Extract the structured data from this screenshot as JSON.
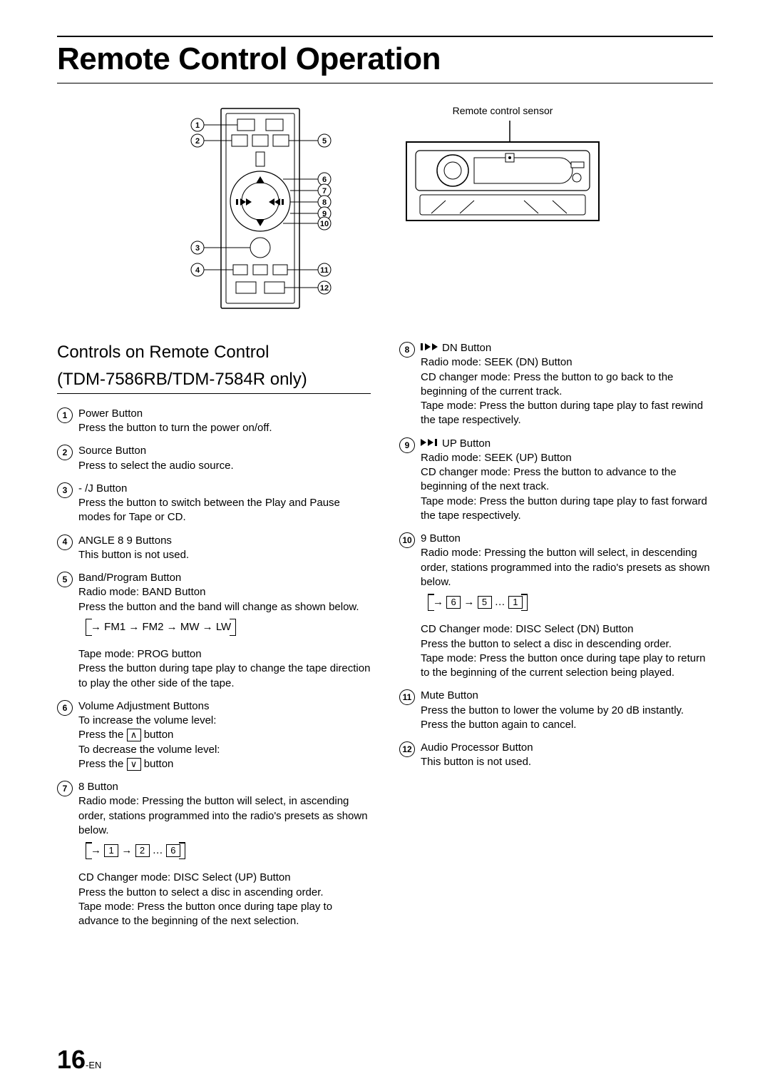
{
  "page": {
    "title": "Remote Control Operation",
    "number": "16",
    "number_suffix": "-EN"
  },
  "figures": {
    "sensor_label": "Remote control sensor",
    "remote_callouts": [
      "1",
      "2",
      "3",
      "4",
      "5",
      "6",
      "7",
      "8",
      "9",
      "10",
      "11",
      "12"
    ]
  },
  "section": {
    "heading_line1": "Controls on Remote Control",
    "heading_line2": "(TDM-7586RB/TDM-7584R only)"
  },
  "items_left": [
    {
      "num": "1",
      "head": "Power Button",
      "desc": "Press the button to turn the power on/off."
    },
    {
      "num": "2",
      "head": "Source  Button",
      "desc": "Press to select the audio source."
    },
    {
      "num": "3",
      "head": "- /J Button",
      "desc": "Press the button to switch between the Play and Pause modes for Tape or CD."
    },
    {
      "num": "4",
      "head": "ANGLE 8 9 Buttons",
      "desc": "This button is not used."
    },
    {
      "num": "5",
      "head": "Band/Program Button",
      "desc_pre": "Radio mode: BAND Button\nPress the button and the band will change as shown below.",
      "cycle": "→ FM1 → FM2 → MW → LW",
      "desc_post": "Tape mode: PROG button\nPress the button during tape play to change the tape direction to play the other side of the tape."
    },
    {
      "num": "6",
      "head": "Volume Adjustment Buttons",
      "desc_lines": [
        "To increase the volume level:",
        {
          "prefix": "Press the ",
          "key": "∧",
          "suffix": " button"
        },
        "To decrease the volume level:",
        {
          "prefix": "Press the ",
          "key": "∨",
          "suffix": " button"
        }
      ]
    },
    {
      "num": "7",
      "head": "8 Button",
      "desc_pre": "Radio mode: Pressing the button will select, in ascending order, stations programmed into the radio's presets as shown below.",
      "cycle_keys": [
        "→",
        "1",
        "→",
        "2",
        "…",
        "6"
      ],
      "desc_post": "CD Changer mode: DISC Select (UP) Button\nPress the button to select a disc in ascending order.\nTape mode: Press the button once during tape play to advance to the beginning of the next selection."
    }
  ],
  "items_right": [
    {
      "num": "8",
      "icon": "prev",
      "head": "DN Button",
      "desc": "Radio mode: SEEK (DN) Button\nCD changer mode: Press the button to go back to the beginning of the current track.\nTape mode: Press the button during tape play to fast rewind the tape respectively."
    },
    {
      "num": "9",
      "icon": "next",
      "head": "UP Button",
      "desc": "Radio mode: SEEK (UP) Button\nCD changer mode: Press the button to advance to the beginning of the next track.\nTape mode: Press the button during tape play to fast forward the tape respectively."
    },
    {
      "num": "10",
      "head": "9 Button",
      "desc_pre": "Radio mode: Pressing the button will select, in descending order, stations programmed into the radio's presets as shown below.",
      "cycle_keys": [
        "→",
        "6",
        "→",
        "5",
        "…",
        "1"
      ],
      "desc_post": "CD Changer mode: DISC Select (DN) Button\nPress the button to select a disc in descending order.\nTape mode: Press the button once during tape play to return to the beginning of the current selection being played."
    },
    {
      "num": "11",
      "head": "Mute Button",
      "desc": "Press the button to lower the volume by 20 dB instantly. Press the button again to cancel."
    },
    {
      "num": "12",
      "head": "Audio Processor Button",
      "desc": "This button is not used."
    }
  ]
}
